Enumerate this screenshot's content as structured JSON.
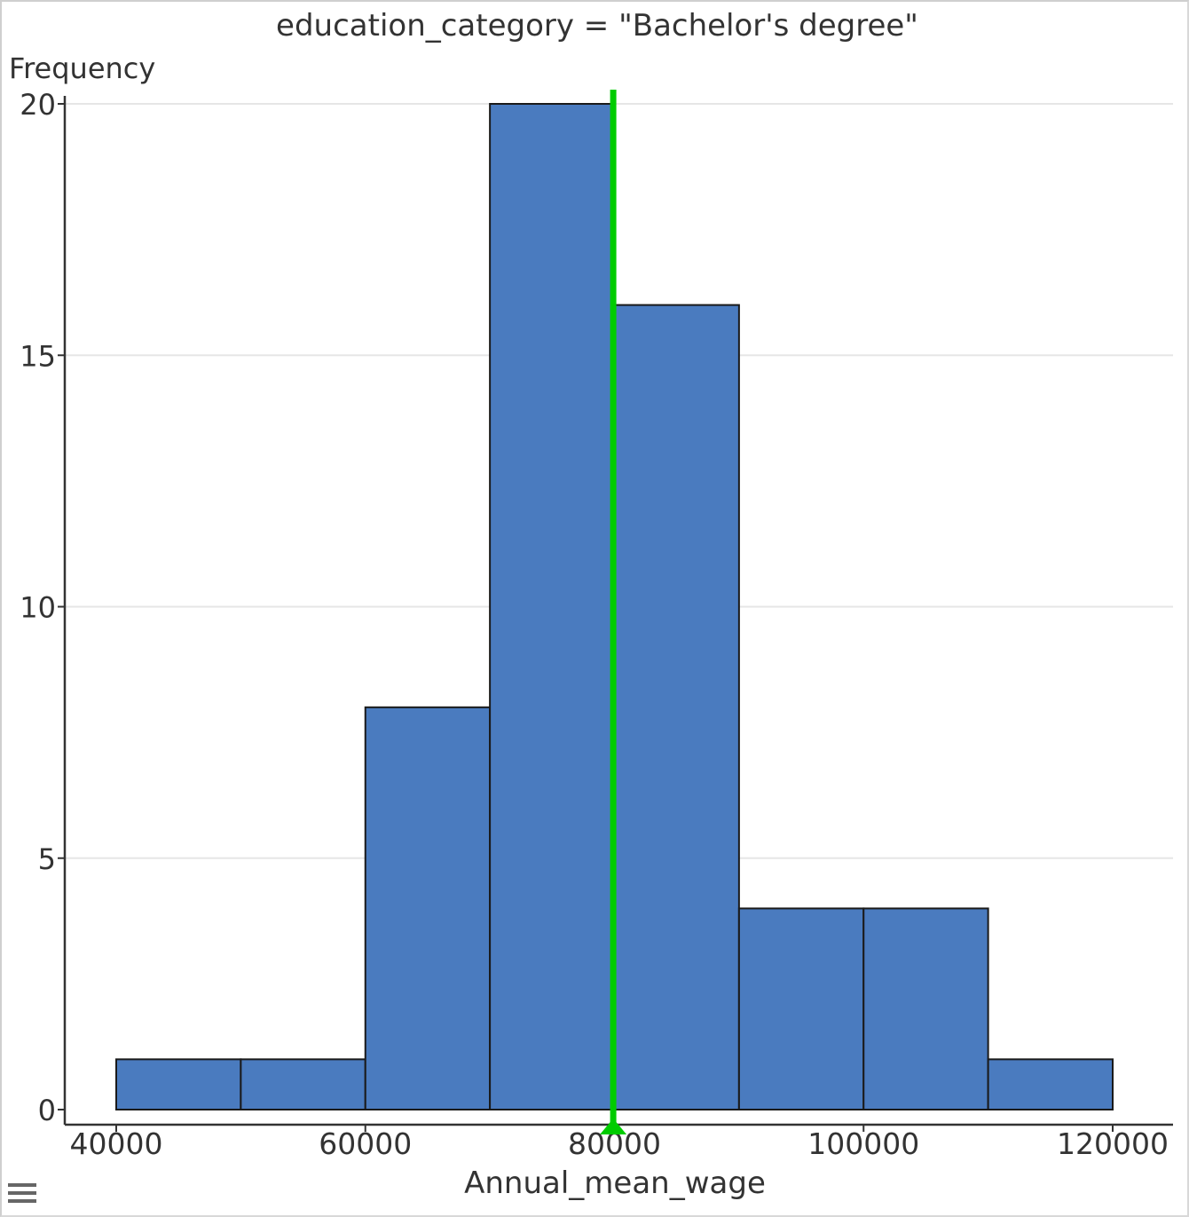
{
  "chart_data": {
    "type": "histogram",
    "title": "education_category = \"Bachelor's degree\"",
    "xlabel": "Annual_mean_wage",
    "ylabel": "Frequency",
    "xlim": [
      38000,
      122500
    ],
    "ylim": [
      0,
      20.5
    ],
    "x_ticks": [
      40000,
      60000,
      80000,
      100000,
      120000
    ],
    "y_ticks": [
      0,
      5,
      10,
      15,
      20
    ],
    "grid": true,
    "bins": [
      {
        "start": 40000,
        "end": 50000,
        "count": 1
      },
      {
        "start": 50000,
        "end": 60000,
        "count": 1
      },
      {
        "start": 60000,
        "end": 70000,
        "count": 8
      },
      {
        "start": 70000,
        "end": 80000,
        "count": 20
      },
      {
        "start": 80000,
        "end": 90000,
        "count": 16
      },
      {
        "start": 90000,
        "end": 100000,
        "count": 4
      },
      {
        "start": 100000,
        "end": 110000,
        "count": 4
      },
      {
        "start": 110000,
        "end": 120000,
        "count": 1
      }
    ],
    "reference_line": {
      "x": 79900,
      "color": "#00cc00"
    },
    "bar_color": "#4a7bbf",
    "bar_edge_color": "#1a1a1a",
    "grid_color": "#e6e6e6"
  }
}
